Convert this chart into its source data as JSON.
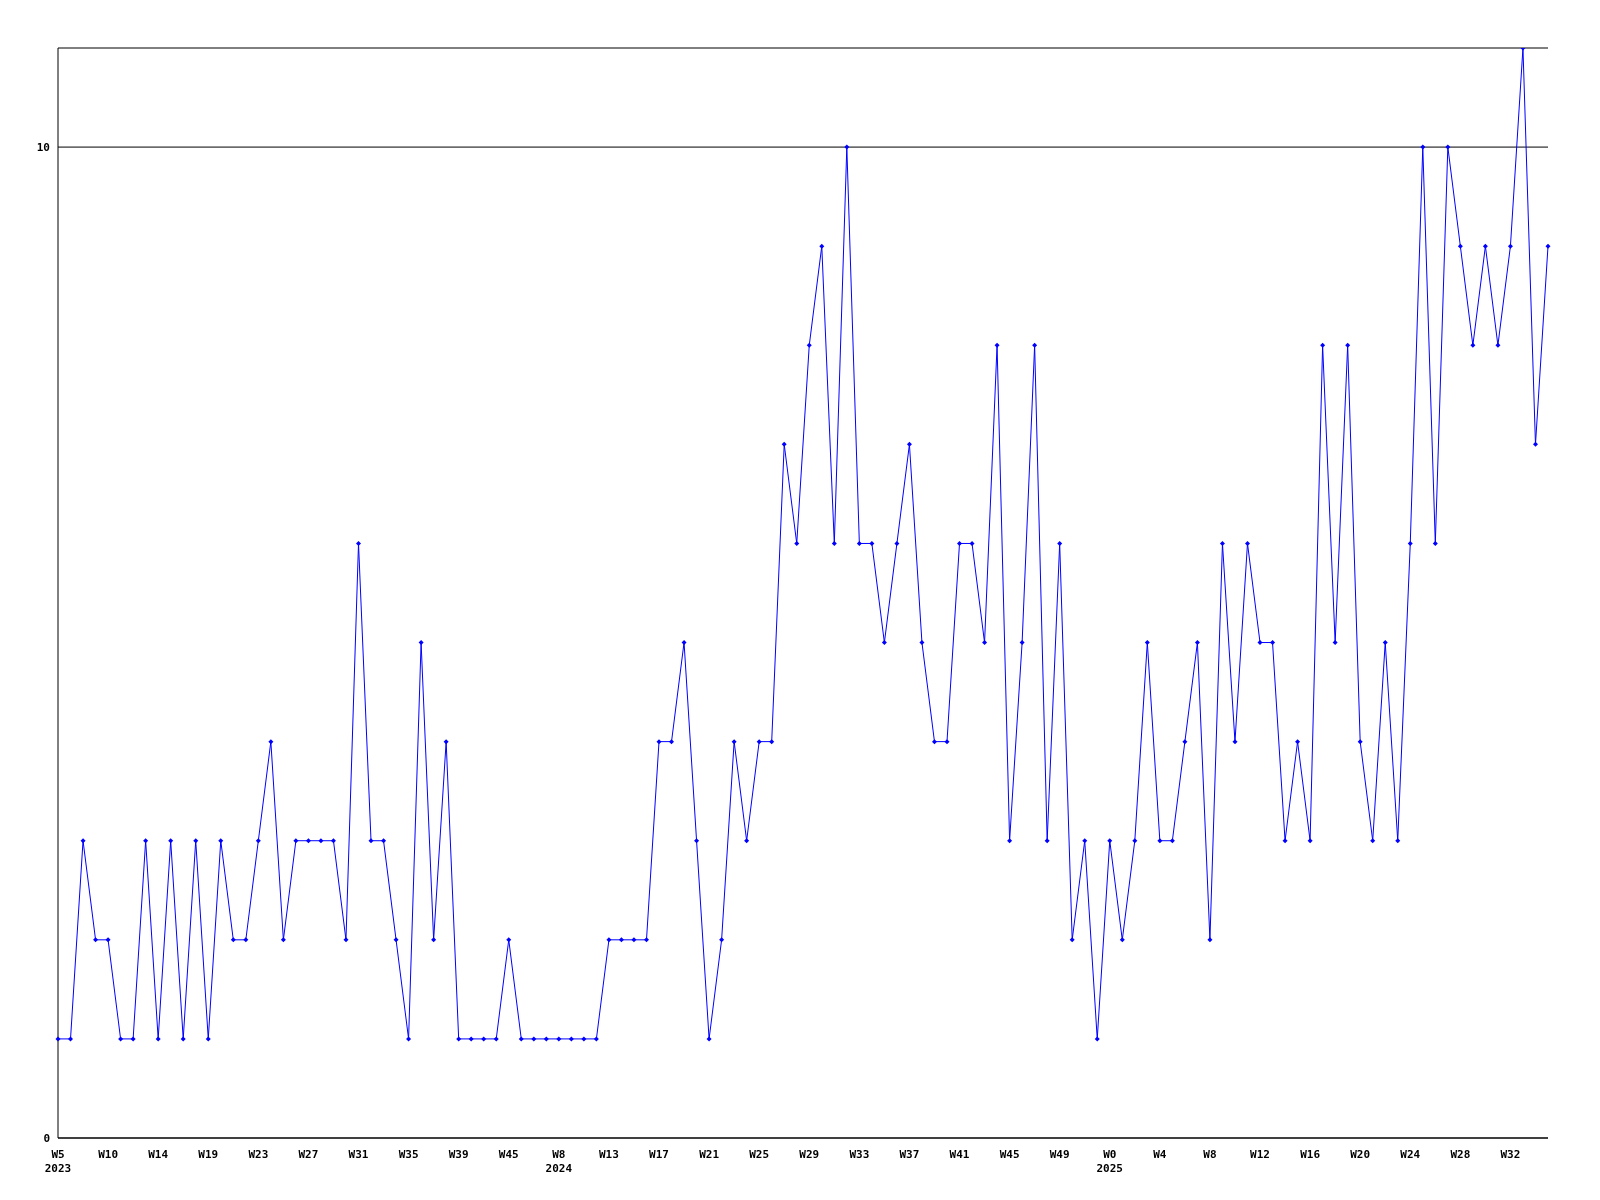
{
  "chart_data": {
    "type": "line",
    "categories": [
      "W5\n2023",
      null,
      null,
      null,
      "W10",
      null,
      null,
      null,
      "W14",
      null,
      null,
      null,
      "W19",
      null,
      null,
      null,
      "W23",
      null,
      null,
      null,
      "W27",
      null,
      null,
      null,
      "W31",
      null,
      null,
      null,
      "W35",
      null,
      null,
      null,
      "W39",
      null,
      null,
      null,
      "W45",
      null,
      null,
      null,
      "W8\n2024",
      null,
      null,
      null,
      "W13",
      null,
      null,
      null,
      "W17",
      null,
      null,
      null,
      "W21",
      null,
      null,
      null,
      "W25",
      null,
      null,
      null,
      "W29",
      null,
      null,
      null,
      "W33",
      null,
      null,
      null,
      "W37",
      null,
      null,
      null,
      "W41",
      null,
      null,
      null,
      "W45",
      null,
      null,
      null,
      "W49",
      null,
      null,
      null,
      "W0\n2025",
      null,
      null,
      null,
      "W4",
      null,
      null,
      null,
      "W8",
      null,
      null,
      null,
      "W12",
      null,
      null,
      null,
      "W16",
      null,
      null,
      null,
      "W20",
      null,
      null,
      null,
      "W24",
      null,
      null,
      null,
      "W28",
      null,
      null,
      null,
      "W32",
      null,
      null,
      null
    ],
    "series": [
      {
        "color": "#0000ff",
        "values": [
          1,
          1,
          3,
          2,
          2,
          1,
          1,
          3,
          1,
          3,
          1,
          3,
          1,
          3,
          2,
          2,
          3,
          4,
          2,
          3,
          3,
          3,
          3,
          2,
          6,
          3,
          3,
          2,
          1,
          5,
          2,
          4,
          1,
          1,
          1,
          1,
          2,
          1,
          1,
          1,
          1,
          1,
          1,
          1,
          2,
          2,
          2,
          2,
          4,
          4,
          5,
          3,
          1,
          2,
          4,
          3,
          4,
          4,
          7,
          6,
          8,
          9,
          6,
          10,
          6,
          6,
          5,
          6,
          7,
          5,
          4,
          4,
          6,
          6,
          5,
          8,
          3,
          5,
          8,
          3,
          6,
          2,
          3,
          1,
          3,
          2,
          3,
          5,
          3,
          3,
          4,
          5,
          2,
          6,
          4,
          6,
          5,
          5,
          3,
          4,
          3,
          8,
          5,
          8,
          4,
          3,
          5,
          3,
          6,
          10,
          6,
          10,
          9,
          8,
          9,
          8,
          9,
          11,
          7,
          9
        ]
      }
    ],
    "ylim": [
      0,
      11
    ],
    "yticks": [
      0,
      10
    ],
    "grid": "y",
    "marker": "diamond",
    "line_style": "solid",
    "legend": false
  }
}
